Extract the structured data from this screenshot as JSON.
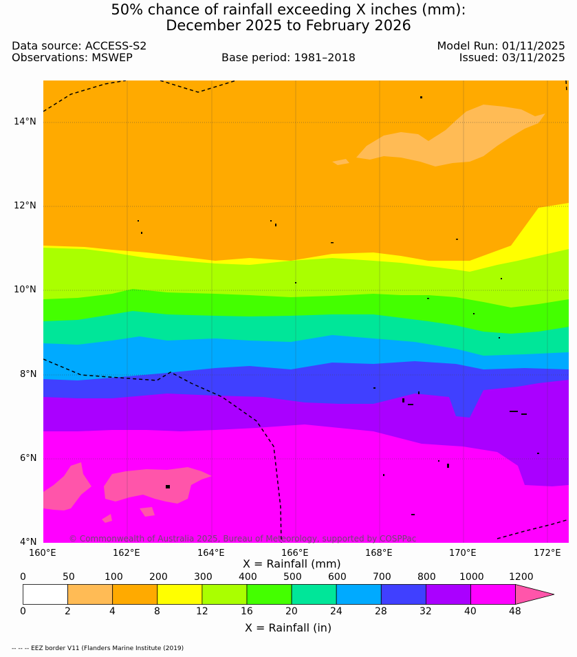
{
  "header": {
    "title_line1": "50% chance of rainfall exceeding X inches (mm):",
    "title_line2": "December 2025 to February 2026",
    "data_source": "Data source: ACCESS-S2",
    "observations": "Observations: MSWEP",
    "base_period": "Base period: 1981–2018",
    "model_run": "Model Run: 01/11/2025",
    "issued": "Issued: 03/11/2025"
  },
  "map": {
    "lat_labels": [
      "14°N",
      "12°N",
      "10°N",
      "8°N",
      "6°N",
      "4°N"
    ],
    "lon_labels": [
      "160°E",
      "162°E",
      "164°E",
      "166°E",
      "168°E",
      "170°E",
      "172°E"
    ],
    "credit": "© Commonwealth of Australia 2025, Bureau of Meteorology, supported by COSPPac",
    "extent": {
      "lon_min": 160,
      "lon_max": 172.5,
      "lat_min": 4,
      "lat_max": 15
    }
  },
  "colorbar": {
    "mm_label": "X = Rainfall (mm)",
    "in_label": "X = Rainfall (in)",
    "mm_ticks": [
      "0",
      "50",
      "100",
      "200",
      "300",
      "400",
      "500",
      "600",
      "700",
      "800",
      "1000",
      "1200"
    ],
    "in_ticks": [
      "0",
      "2",
      "4",
      "8",
      "12",
      "16",
      "20",
      "24",
      "28",
      "32",
      "40",
      "48"
    ],
    "colors": [
      "#ffffff",
      "#ffbb55",
      "#ffaa00",
      "#ffff00",
      "#aaff00",
      "#44ff00",
      "#00e699",
      "#00aaff",
      "#4040ff",
      "#aa00ff",
      "#ff00ff",
      "#ff55aa"
    ]
  },
  "footer": {
    "eez_note": "-- -- -- EEZ border V11 (Flanders Marine Institute (2019)"
  }
}
